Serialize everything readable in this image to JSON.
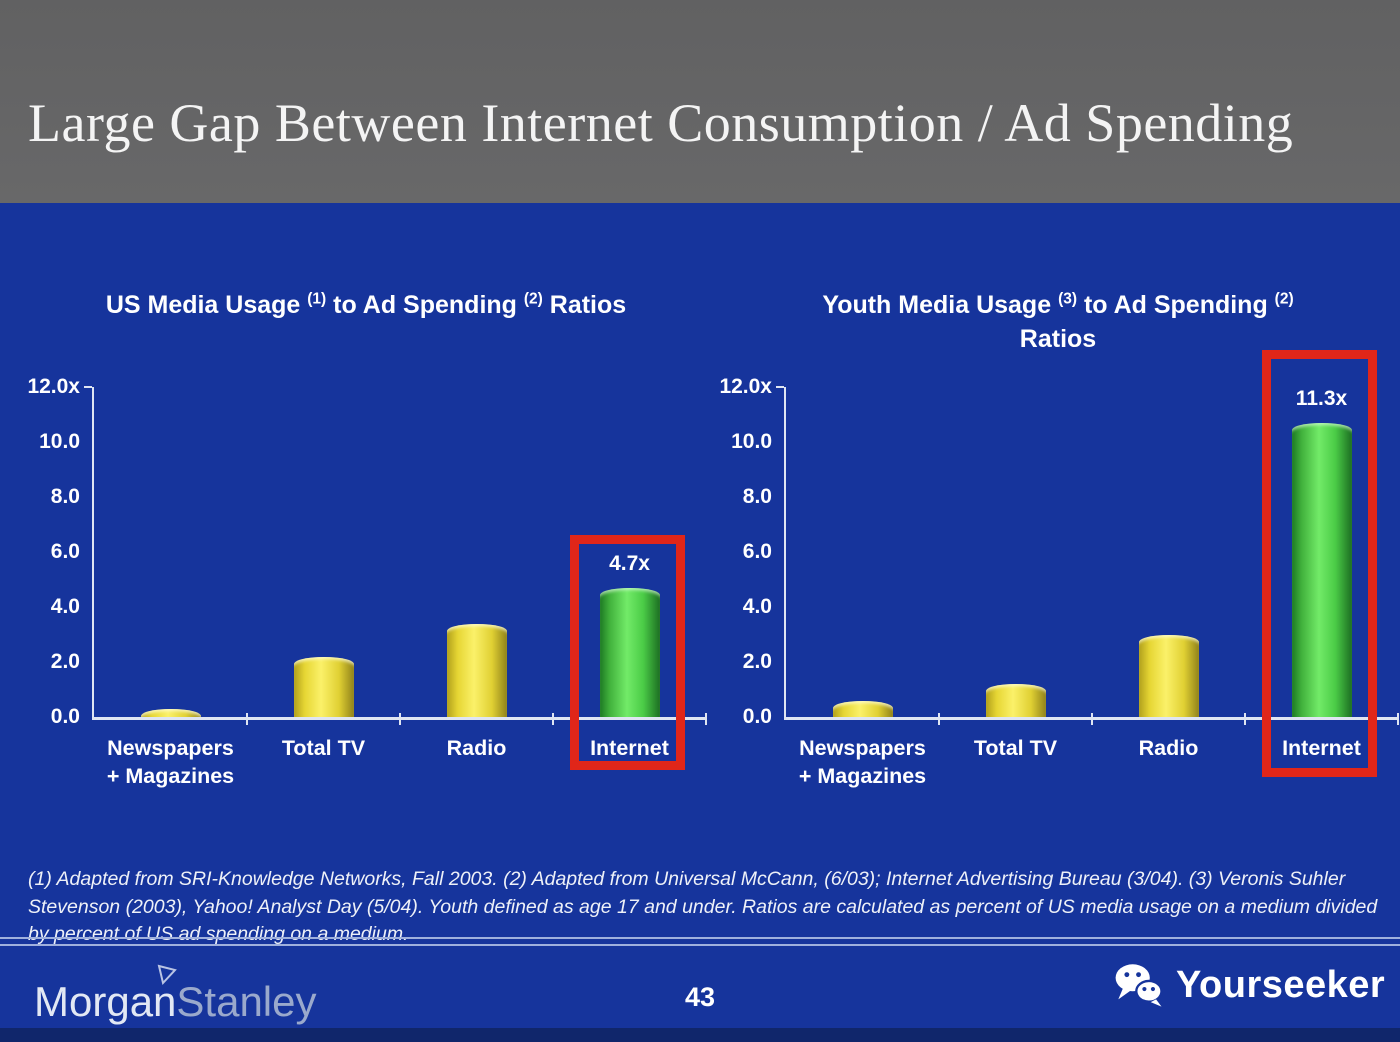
{
  "slide": {
    "title": "Large Gap Between Internet Consumption / Ad Spending",
    "footnote": "(1) Adapted from SRI-Knowledge Networks, Fall 2003.  (2) Adapted from Universal McCann, (6/03); Internet Advertising Bureau (3/04). (3) Veronis Suhler Stevenson (2003), Yahoo! Analyst Day (5/04).  Youth defined as age 17 and under.  Ratios are calculated as percent of US media usage on a medium divided by percent of US ad spending on a medium.",
    "page_number": "43",
    "footer": {
      "brand_word1": "Morgan",
      "brand_word2": "Stanley",
      "watermark": "Yourseeker",
      "watermark_icon": "wechat-icon"
    }
  },
  "colors": {
    "background_blue": "#16349c",
    "header_gray": "#666667",
    "bar_yellow": "#f2e440",
    "bar_green": "#59da52",
    "highlight_red": "#e02619",
    "axis_light": "#dfe5f2",
    "separator_light_blue": "#9fb0dd",
    "bottom_strip_navy": "#10266b"
  },
  "chart_data": [
    {
      "type": "bar",
      "title_parts": [
        {
          "t": "US Media Usage "
        },
        {
          "t": "(1)",
          "sup": true
        },
        {
          "t": " to Ad Spending "
        },
        {
          "t": "(2)",
          "sup": true
        },
        {
          "t": " Ratios"
        }
      ],
      "categories": [
        "Newspapers\n+ Magazines",
        "Total TV",
        "Radio",
        "Internet"
      ],
      "values": [
        0.3,
        2.2,
        3.4,
        4.7
      ],
      "bar_labels": [
        "",
        "",
        "",
        "4.7x"
      ],
      "bar_colors": [
        "yellow",
        "yellow",
        "yellow",
        "green"
      ],
      "y_tick_labels": [
        "12.0x",
        "10.0",
        "8.0",
        "6.0",
        "4.0",
        "2.0",
        "0.0"
      ],
      "ylim": [
        0,
        12
      ],
      "grid": false,
      "legend": "none",
      "highlighted_category": "Internet"
    },
    {
      "type": "bar",
      "title_parts": [
        {
          "t": "Youth Media Usage "
        },
        {
          "t": "(3)",
          "sup": true
        },
        {
          "t": " to Ad Spending "
        },
        {
          "t": "(2)",
          "sup": true
        },
        {
          "br": true
        },
        {
          "t": "Ratios"
        }
      ],
      "categories": [
        "Newspapers\n+ Magazines",
        "Total TV",
        "Radio",
        "Internet"
      ],
      "values": [
        0.6,
        1.2,
        3.0,
        11.3
      ],
      "bar_labels": [
        "",
        "",
        "",
        "11.3x"
      ],
      "bar_colors": [
        "yellow",
        "yellow",
        "yellow",
        "green"
      ],
      "y_tick_labels": [
        "12.0x",
        "10.0",
        "8.0",
        "6.0",
        "4.0",
        "2.0",
        "0.0"
      ],
      "ylim": [
        0,
        12
      ],
      "grid": false,
      "legend": "none",
      "highlighted_category": "Internet"
    }
  ]
}
